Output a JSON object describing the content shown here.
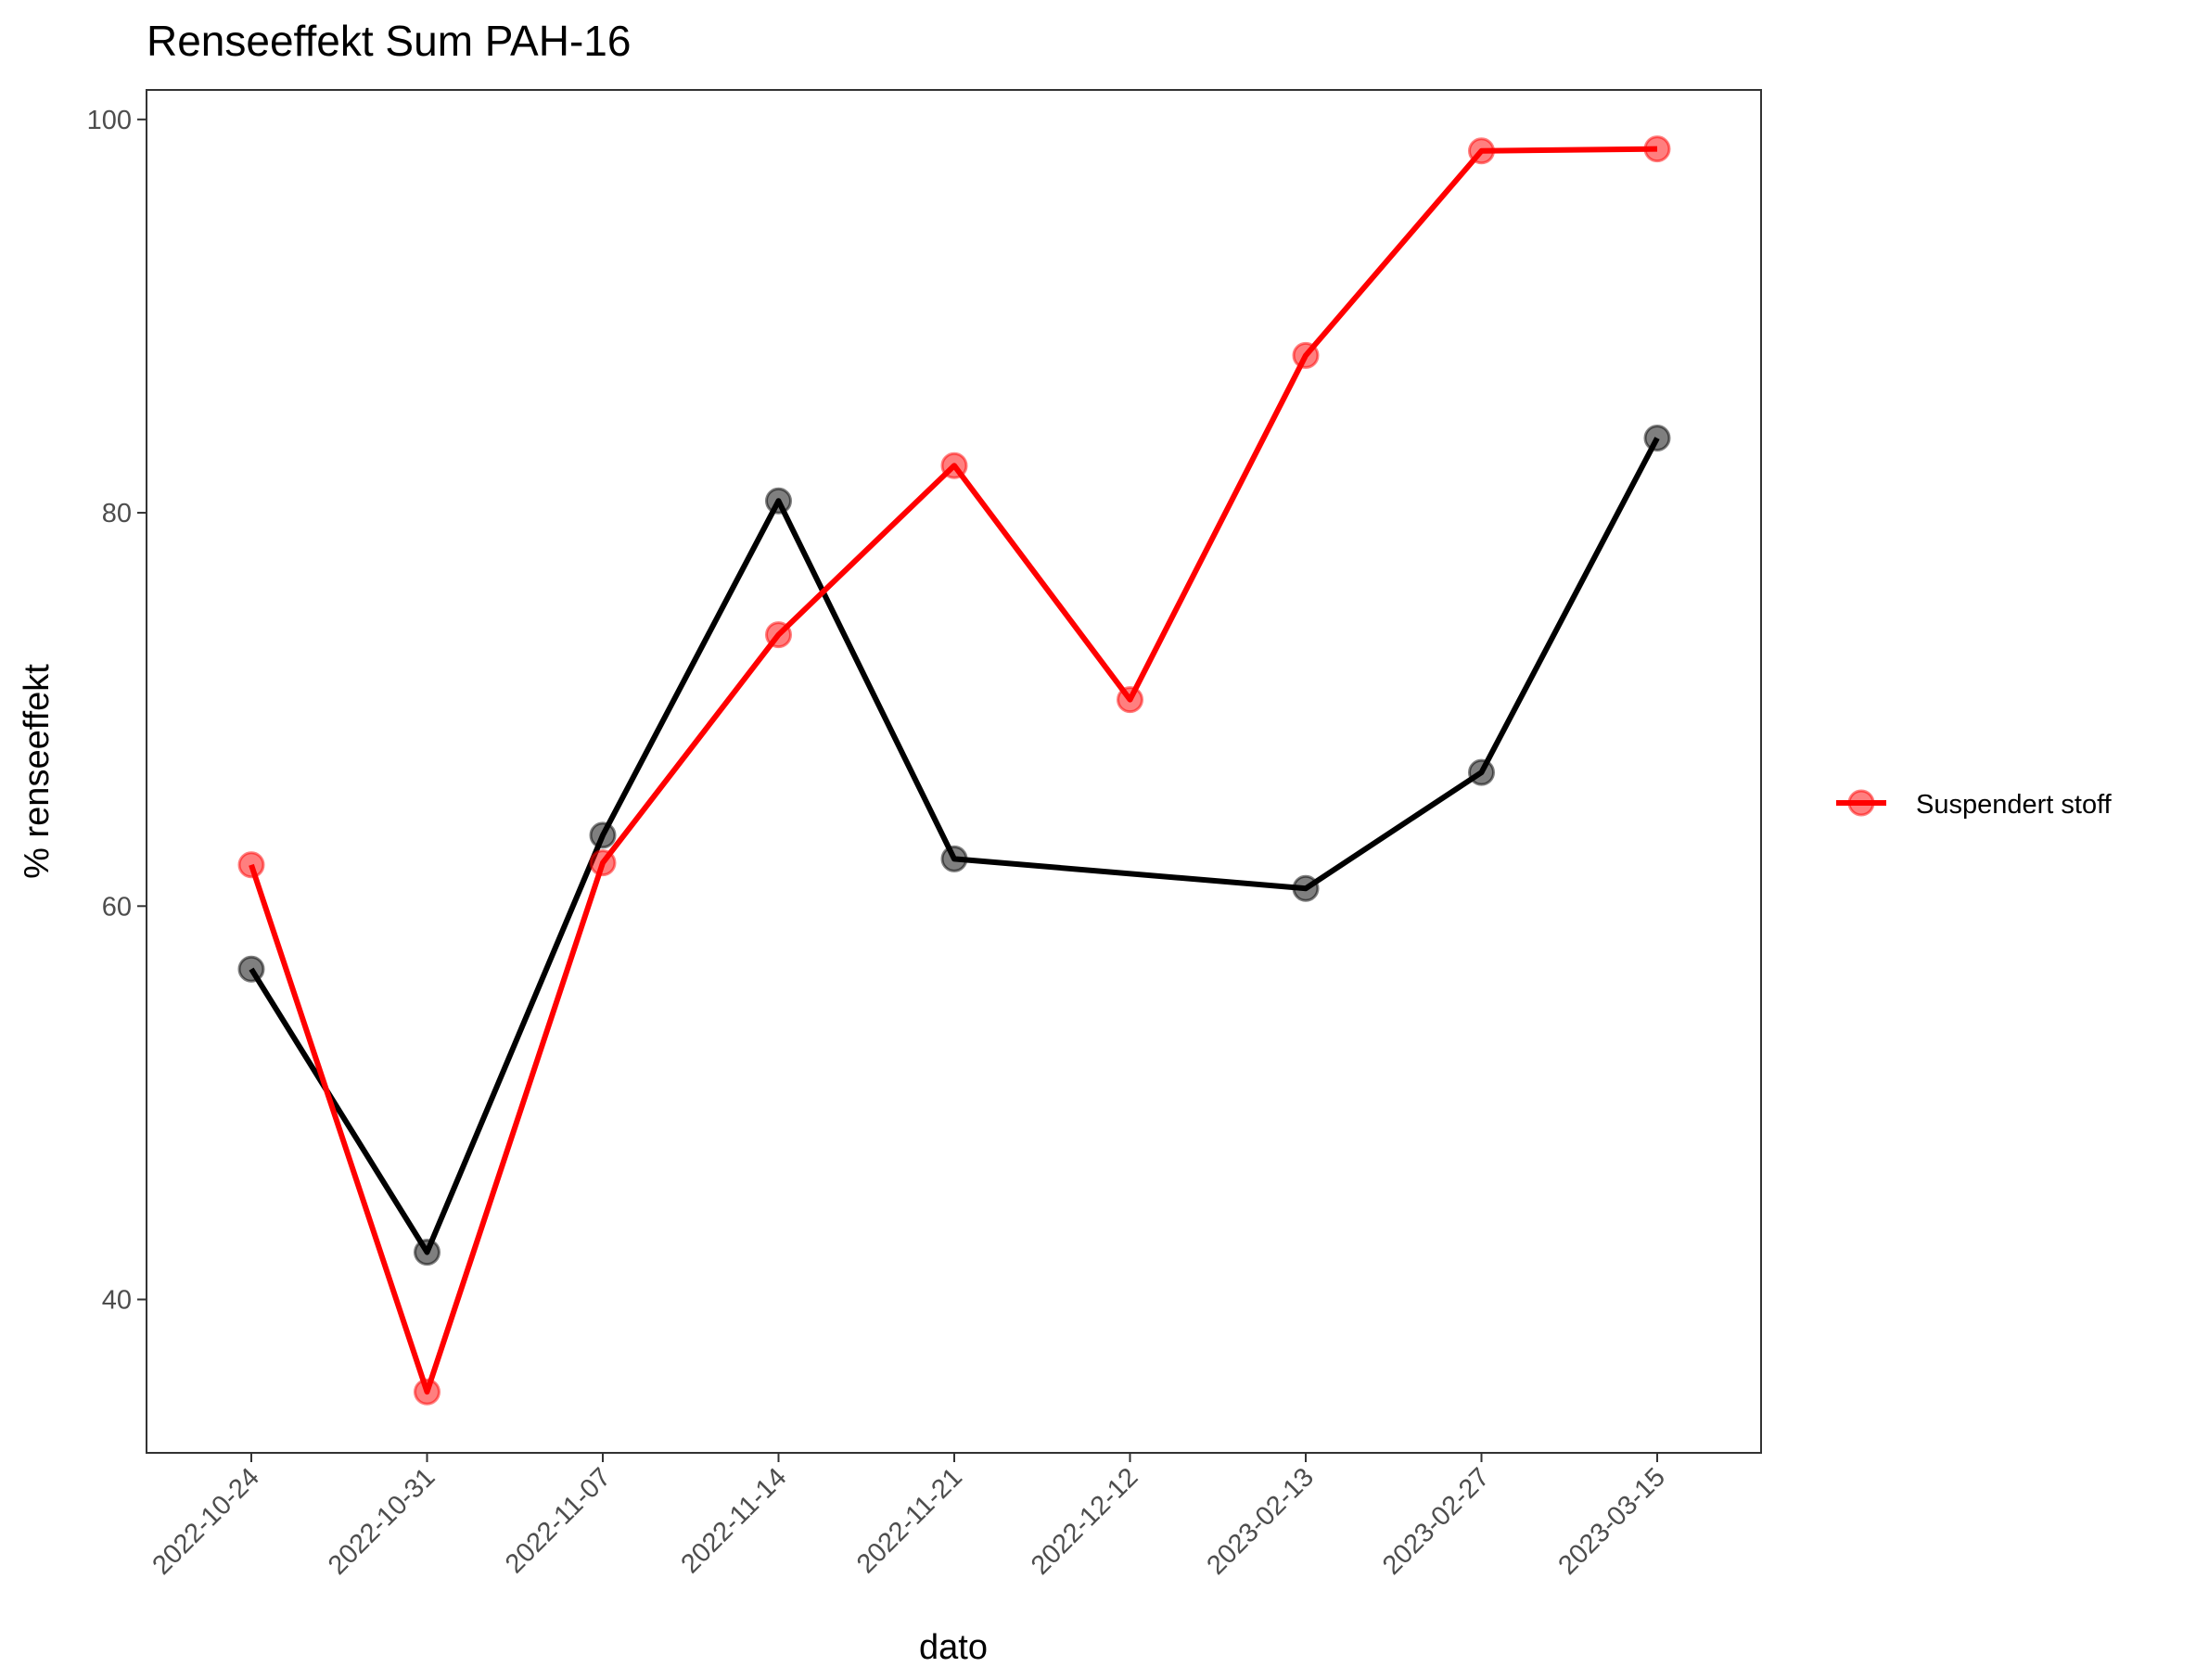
{
  "chart_data": {
    "type": "line",
    "title": "Renseeffekt Sum PAH-16",
    "xlabel": "dato",
    "ylabel": "% renseeffekt",
    "categories": [
      "2022-10-24",
      "2022-10-31",
      "2022-11-07",
      "2022-11-14",
      "2022-11-21",
      "2022-12-12",
      "2023-02-13",
      "2023-02-27",
      "2023-03-15"
    ],
    "yticks": [
      40,
      60,
      80,
      100
    ],
    "ylim": [
      32.2,
      101.5
    ],
    "grid": false,
    "legend_position": "right",
    "series": [
      {
        "name": "",
        "color": "#000000",
        "values": [
          56.8,
          42.4,
          63.6,
          80.6,
          62.4,
          null,
          60.9,
          66.8,
          83.8
        ]
      },
      {
        "name": "Suspendert stoff",
        "color": "#ff0000",
        "values": [
          62.1,
          35.3,
          62.2,
          73.8,
          82.4,
          70.5,
          88.0,
          98.4,
          98.5
        ]
      }
    ]
  }
}
